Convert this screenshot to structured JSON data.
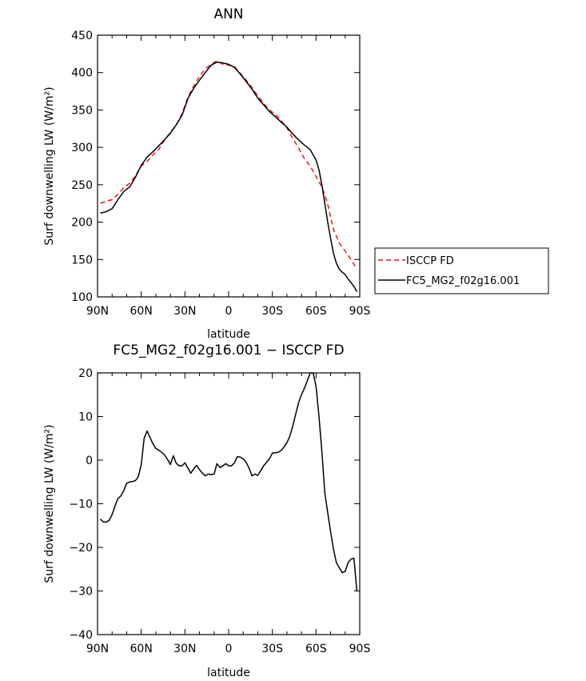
{
  "chart_data": [
    {
      "type": "line",
      "title": "ANN",
      "xlabel": "latitude",
      "ylabel": "Surf downwelling LW (W/m²)",
      "ylim": [
        100,
        450
      ],
      "xlim": [
        90,
        -90
      ],
      "xticks": [
        90,
        60,
        30,
        0,
        -30,
        -60,
        -90
      ],
      "xtick_labels": [
        "90N",
        "60N",
        "30N",
        "0",
        "30S",
        "60S",
        "90S"
      ],
      "yticks": [
        100,
        150,
        200,
        250,
        300,
        350,
        400,
        450
      ],
      "ytick_labels": [
        "100",
        "150",
        "200",
        "250",
        "300",
        "350",
        "400",
        "450"
      ],
      "legend_position": "right",
      "series": [
        {
          "name": "ISCCP FD",
          "color": "#e8161b",
          "dash": "dashed",
          "x": [
            88,
            84,
            80,
            76,
            72,
            68,
            64,
            60,
            56,
            52,
            48,
            44,
            40,
            36,
            32,
            28,
            24,
            20,
            16,
            12,
            8,
            4,
            0,
            -4,
            -8,
            -12,
            -16,
            -20,
            -24,
            -28,
            -32,
            -36,
            -40,
            -44,
            -48,
            -52,
            -56,
            -60,
            -64,
            -66,
            -68,
            -72,
            -76,
            -80,
            -84,
            -88
          ],
          "y": [
            225,
            228,
            230,
            237,
            246,
            252,
            262,
            275,
            281,
            290,
            297,
            310,
            320,
            330,
            345,
            367,
            382,
            395,
            405,
            411,
            416,
            411,
            410,
            408,
            399,
            390,
            380,
            369,
            359,
            350,
            344,
            336,
            326,
            312,
            299,
            285,
            275,
            261,
            247,
            236,
            224,
            190,
            172,
            161,
            150,
            137
          ]
        },
        {
          "name": "FC5_MG2_f02g16.001",
          "color": "#000000",
          "dash": "solid",
          "x": [
            88,
            84,
            80,
            76,
            72,
            68,
            64,
            60,
            56,
            52,
            48,
            44,
            40,
            36,
            32,
            28,
            24,
            20,
            16,
            12,
            8,
            4,
            0,
            -4,
            -8,
            -12,
            -16,
            -20,
            -24,
            -28,
            -32,
            -36,
            -40,
            -44,
            -48,
            -52,
            -56,
            -60,
            -62,
            -64,
            -66,
            -68,
            -70,
            -72,
            -74,
            -76,
            -78,
            -80,
            -82,
            -84,
            -86,
            -88
          ],
          "y": [
            212,
            214,
            218,
            230,
            241,
            247,
            260,
            276,
            287,
            294,
            302,
            310,
            319,
            330,
            343,
            365,
            379,
            390,
            400,
            410,
            414,
            413,
            411,
            407,
            398,
            388,
            378,
            366,
            357,
            348,
            341,
            334,
            327,
            318,
            310,
            303,
            297,
            283,
            270,
            250,
            225,
            200,
            178,
            158,
            145,
            137,
            133,
            130,
            124,
            119,
            114,
            107
          ]
        }
      ]
    },
    {
      "type": "line",
      "title": "FC5_MG2_f02g16.001 − ISCCP FD",
      "xlabel": "latitude",
      "ylabel": "Surf downwelling LW (W/m²)",
      "ylim": [
        -40,
        20
      ],
      "xlim": [
        90,
        -90
      ],
      "xticks": [
        90,
        60,
        30,
        0,
        -30,
        -60,
        -90
      ],
      "xtick_labels": [
        "90N",
        "60N",
        "30N",
        "0",
        "30S",
        "60S",
        "90S"
      ],
      "yticks": [
        -40,
        -30,
        -20,
        -10,
        0,
        10,
        20
      ],
      "ytick_labels": [
        "−40",
        "−30",
        "−20",
        "−10",
        "0",
        "10",
        "20"
      ],
      "series": [
        {
          "color": "#000000",
          "x": [
            88,
            86,
            84,
            82,
            80,
            78,
            76,
            74,
            72,
            70,
            68,
            66,
            64,
            62,
            60,
            58,
            56,
            54,
            52,
            50,
            48,
            46,
            44,
            42,
            40,
            38,
            36,
            34,
            32,
            30,
            28,
            26,
            24,
            22,
            20,
            18,
            16,
            14,
            12,
            10,
            8,
            6,
            4,
            2,
            0,
            -2,
            -4,
            -6,
            -8,
            -10,
            -12,
            -14,
            -16,
            -18,
            -20,
            -22,
            -24,
            -26,
            -28,
            -30,
            -32,
            -34,
            -36,
            -38,
            -40,
            -42,
            -44,
            -46,
            -48,
            -50,
            -52,
            -54,
            -56,
            -58,
            -60,
            -62,
            -64,
            -66,
            -68,
            -70,
            -72,
            -74,
            -76,
            -78,
            -80,
            -82,
            -84,
            -86,
            -88
          ],
          "y": [
            -13.5,
            -14.2,
            -14.2,
            -13.8,
            -12.5,
            -10.5,
            -8.8,
            -8.2,
            -7.0,
            -5.3,
            -5.0,
            -4.9,
            -4.7,
            -3.8,
            -1.0,
            5.0,
            6.7,
            5.2,
            3.8,
            2.7,
            2.3,
            1.8,
            1.2,
            0.2,
            -1.0,
            1.0,
            -0.7,
            -1.3,
            -1.3,
            -0.6,
            -1.8,
            -3.0,
            -2.0,
            -1.2,
            -2.2,
            -3.0,
            -3.6,
            -3.2,
            -3.3,
            -3.2,
            -0.8,
            -1.7,
            -1.3,
            -0.8,
            -1.3,
            -1.3,
            -0.6,
            0.8,
            0.7,
            0.3,
            -0.5,
            -1.8,
            -3.6,
            -3.2,
            -3.5,
            -2.4,
            -1.3,
            -0.5,
            0.3,
            1.6,
            1.7,
            1.8,
            2.2,
            3.0,
            4.0,
            5.5,
            7.8,
            10.5,
            13.2,
            15.0,
            16.5,
            18.2,
            20.0,
            20.0,
            17.0,
            10.0,
            2.0,
            -7.5,
            -12.0,
            -16.5,
            -20.5,
            -23.5,
            -24.7,
            -25.8,
            -25.5,
            -23.5,
            -22.7,
            -22.5,
            -30.0
          ]
        }
      ]
    }
  ]
}
